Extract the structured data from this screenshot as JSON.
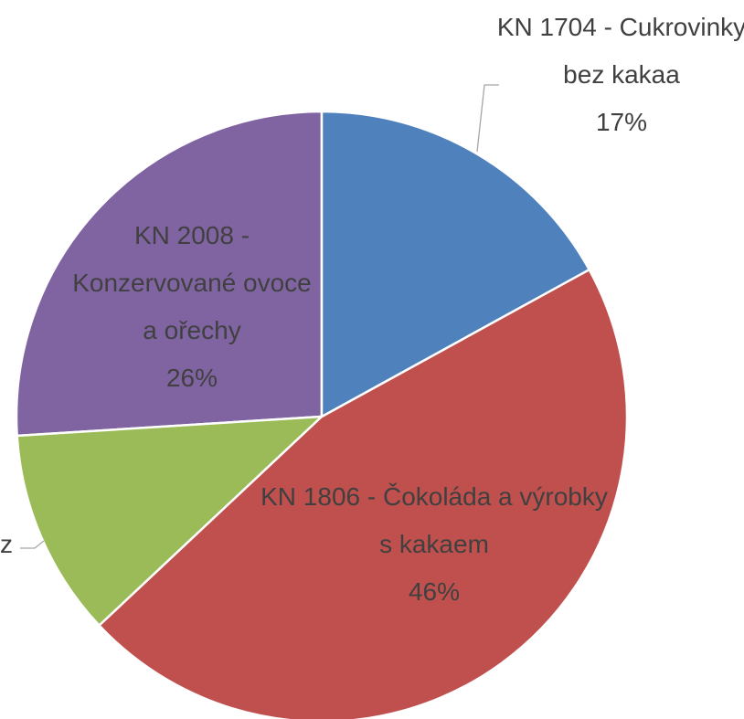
{
  "chart_data": {
    "type": "pie",
    "categories": [
      "KN 1704 - Cukrovinky bez kakaa",
      "KN 1806 - Čokoláda a výrobky s kakaem",
      "z",
      "KN 2008 - Konzervované ovoce a ořechy"
    ],
    "values": [
      17,
      46,
      11,
      26
    ],
    "value_labels": [
      "17%",
      "46%",
      null,
      "26%"
    ],
    "colors": [
      "#4f81bd",
      "#c0504d",
      "#9bbb59",
      "#8064a2"
    ]
  }
}
